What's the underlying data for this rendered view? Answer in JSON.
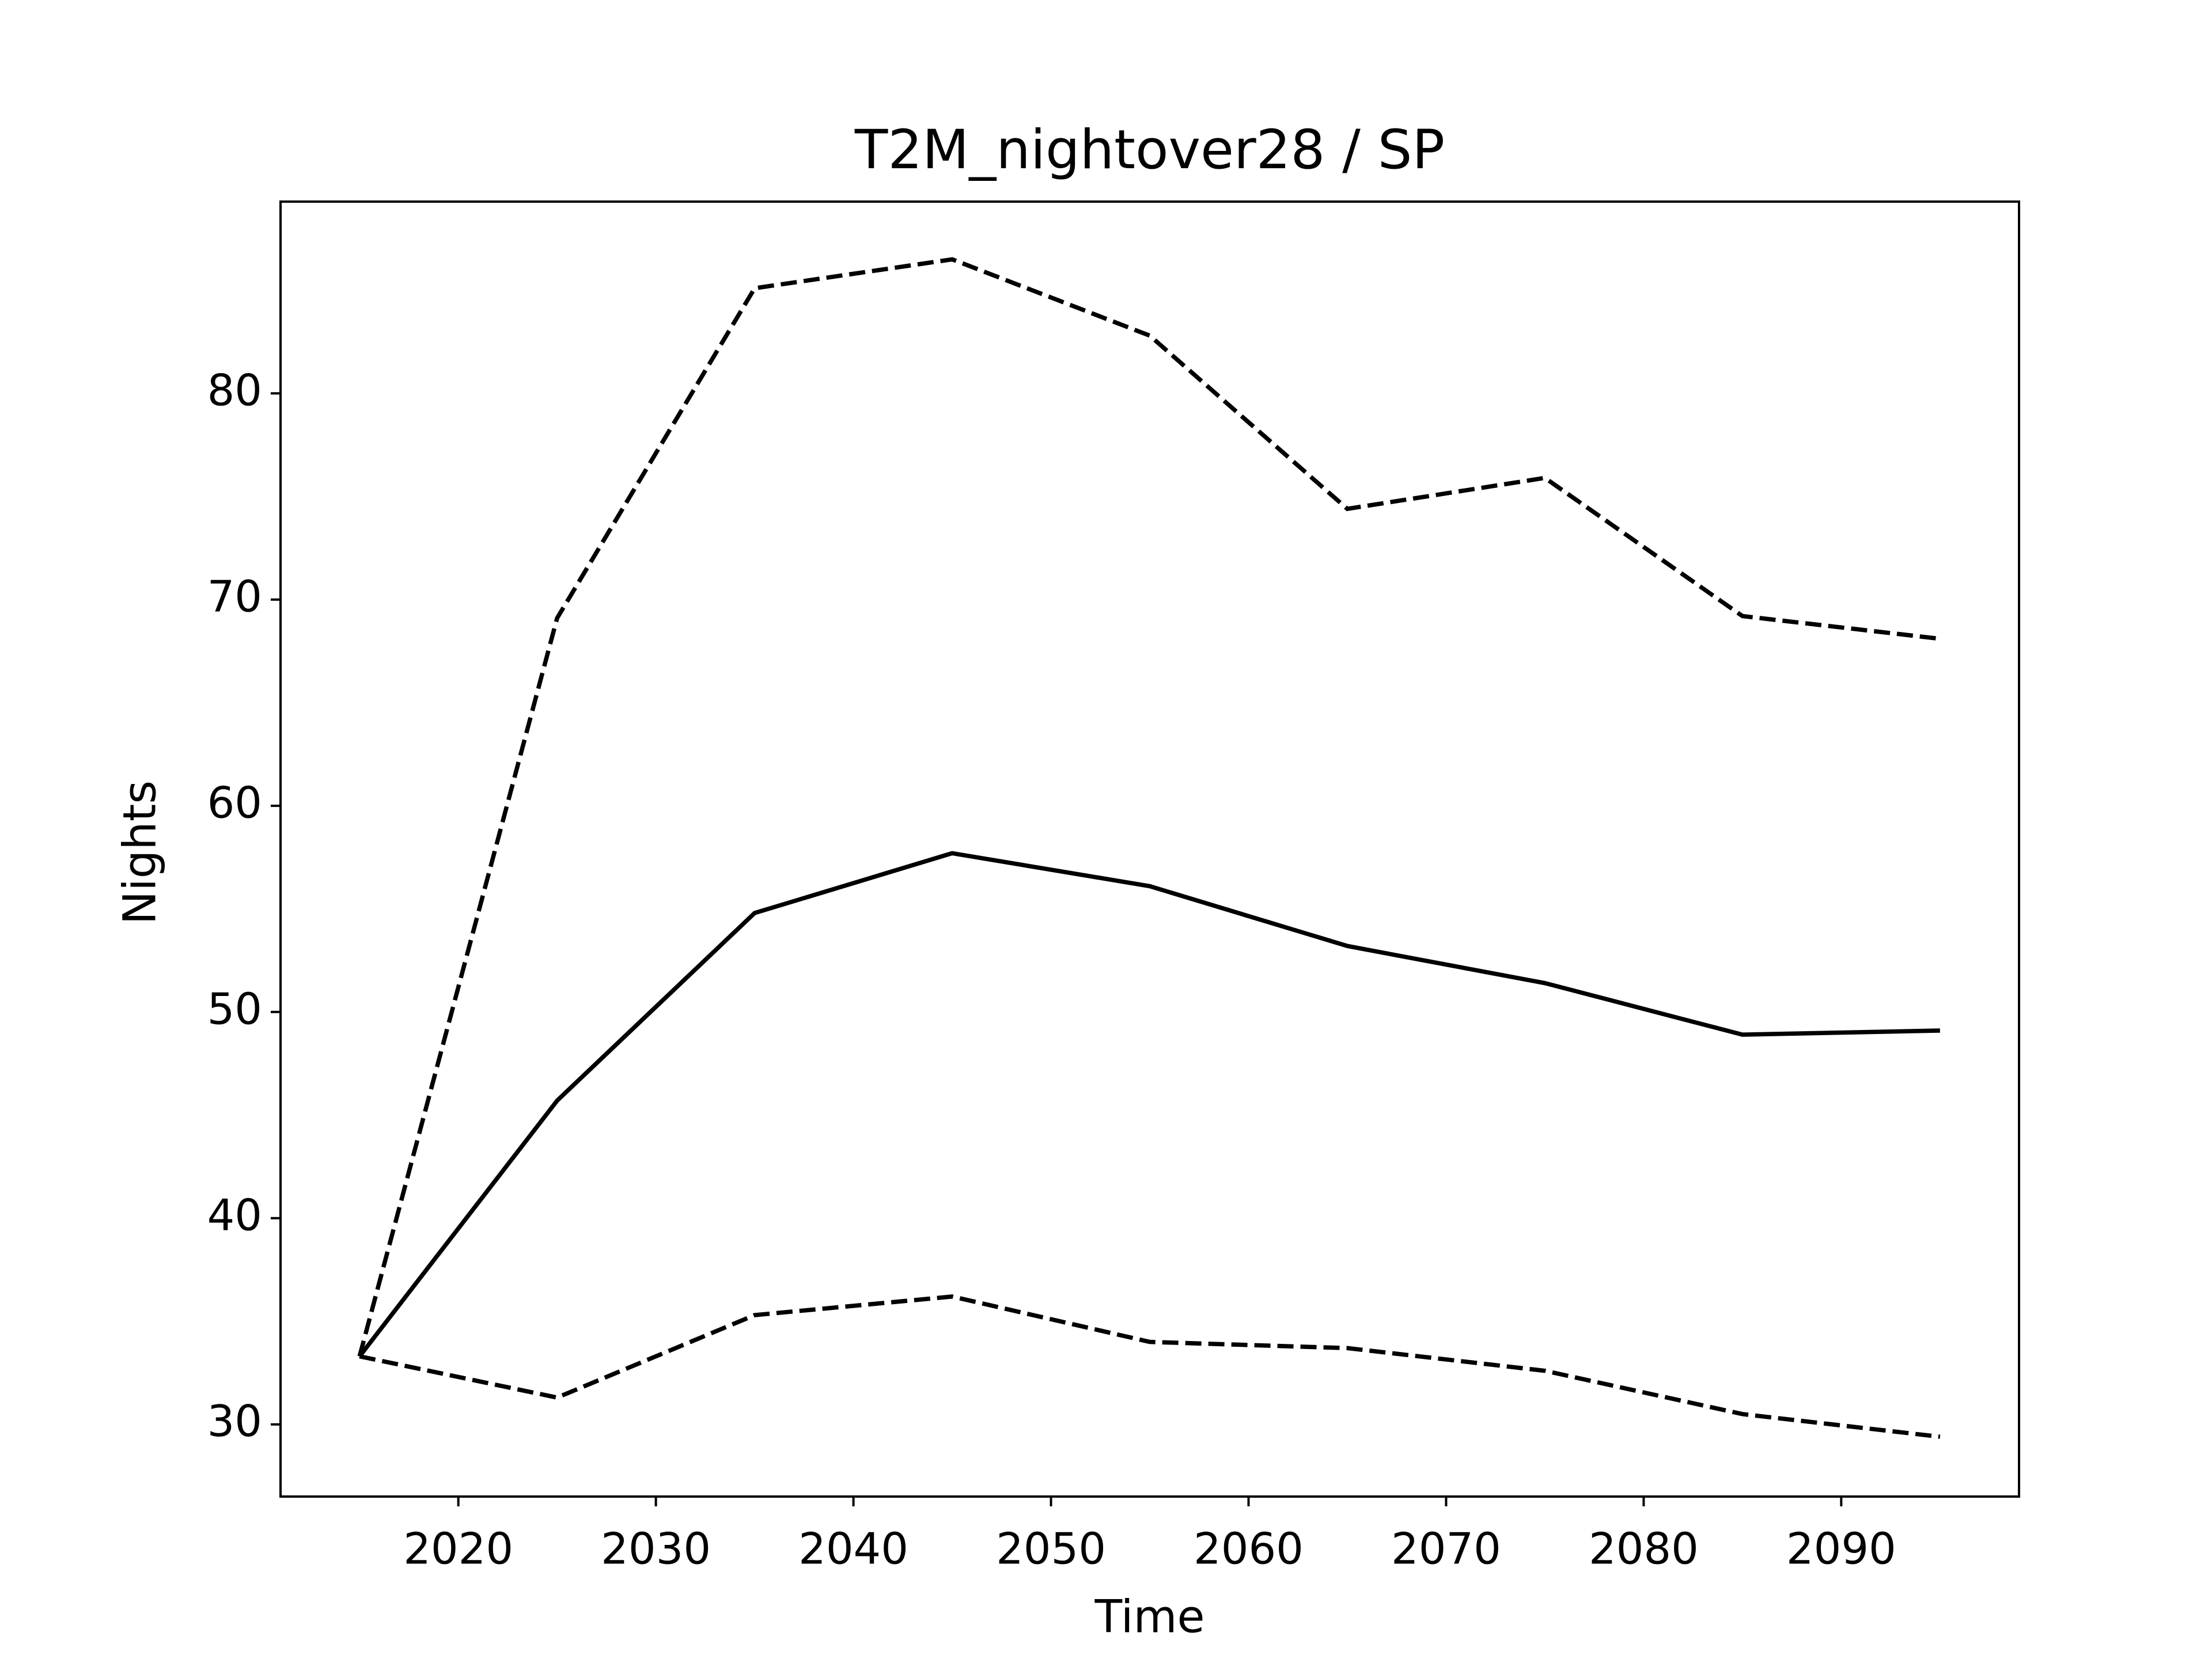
{
  "chart_data": {
    "type": "line",
    "title": "T2M_nightover28 / SP",
    "xlabel": "Time",
    "ylabel": "Nights",
    "x": [
      2015,
      2025,
      2035,
      2045,
      2055,
      2065,
      2075,
      2085,
      2095
    ],
    "series": [
      {
        "color": "#000000",
        "dash": false,
        "values": [
          33.3,
          45.7,
          54.8,
          57.7,
          56.1,
          53.2,
          51.4,
          48.9,
          49.1
        ]
      },
      {
        "color": "#000000",
        "dash": true,
        "values": [
          33.3,
          69.1,
          85.1,
          86.5,
          82.8,
          74.4,
          75.9,
          69.2,
          68.1
        ]
      },
      {
        "color": "#000000",
        "dash": true,
        "values": [
          33.3,
          31.3,
          35.3,
          36.2,
          34.0,
          33.7,
          32.6,
          30.5,
          29.4
        ]
      }
    ],
    "xlim": [
      2011,
      2099
    ],
    "xticks": [
      2020,
      2030,
      2040,
      2050,
      2060,
      2070,
      2080,
      2090
    ],
    "ylim": [
      26.5,
      89.3
    ],
    "yticks": [
      30,
      40,
      50,
      60,
      70,
      80
    ],
    "grid": false
  }
}
